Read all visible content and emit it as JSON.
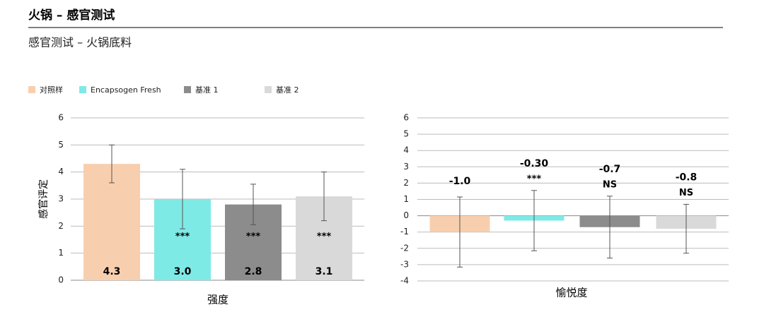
{
  "header": {
    "title": "火锅 – 感官测试",
    "subtitle": "感官测试 – 火锅底料"
  },
  "chart_data": [
    {
      "type": "bar",
      "categories": [
        "对照样",
        "Encapsogen Fresh",
        "基准 1",
        "基准 2"
      ],
      "colors": [
        "#f8cfae",
        "#7eeae6",
        "#8c8c8c",
        "#d9d9d9"
      ],
      "values": [
        4.3,
        3.0,
        2.8,
        3.1
      ],
      "value_labels": [
        "4.3",
        "3.0",
        "2.8",
        "3.1"
      ],
      "errors": [
        0.7,
        1.1,
        0.75,
        0.9
      ],
      "annotations": [
        null,
        "***",
        "***",
        "***"
      ],
      "ylabel": "感官评定",
      "xlabel": "强度",
      "ylim": [
        0,
        6
      ],
      "yticks": [
        0,
        1,
        2,
        3,
        4,
        5,
        6
      ],
      "grid": true
    },
    {
      "type": "bar",
      "categories": [
        "对照样",
        "Encapsogen Fresh",
        "基准 1",
        "基准 2"
      ],
      "colors": [
        "#f8cfae",
        "#7eeae6",
        "#8c8c8c",
        "#d9d9d9"
      ],
      "values": [
        -1.0,
        -0.3,
        -0.7,
        -0.8
      ],
      "value_labels": [
        "-1.0",
        "-0.30",
        "-0.7",
        "-0.8"
      ],
      "errors": [
        2.15,
        1.85,
        1.9,
        1.5
      ],
      "annotations": [
        null,
        "***",
        "NS",
        "NS"
      ],
      "xlabel": "愉悦度",
      "ylim": [
        -4,
        6
      ],
      "yticks": [
        -4,
        -3,
        -2,
        -1,
        0,
        1,
        2,
        3,
        4,
        5,
        6
      ],
      "grid": true
    }
  ]
}
